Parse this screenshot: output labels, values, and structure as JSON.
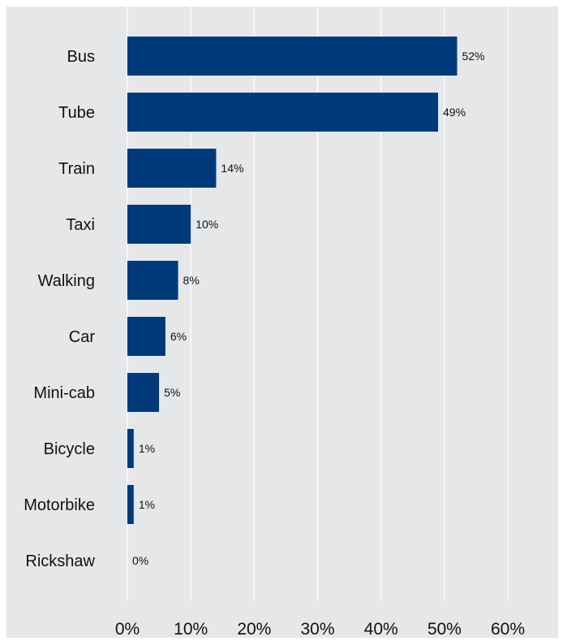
{
  "chart_data": {
    "type": "bar",
    "orientation": "horizontal",
    "categories": [
      "Bus",
      "Tube",
      "Train",
      "Taxi",
      "Walking",
      "Car",
      "Mini-cab",
      "Bicycle",
      "Motorbike",
      "Rickshaw"
    ],
    "values": [
      52,
      49,
      14,
      10,
      8,
      6,
      5,
      1,
      1,
      0
    ],
    "data_labels": [
      "52%",
      "49%",
      "14%",
      "10%",
      "8%",
      "6%",
      "5%",
      "1%",
      "1%",
      "0%"
    ],
    "x_ticks": [
      0,
      10,
      20,
      30,
      40,
      50,
      60
    ],
    "x_tick_labels": [
      "0%",
      "10%",
      "20%",
      "30%",
      "40%",
      "50%",
      "60%"
    ],
    "xlim": [
      0,
      60
    ],
    "grid": "vertical",
    "colors": {
      "bar": "#003a7a",
      "plot_bg": "#e6e7e9",
      "grid": "#ffffff"
    }
  }
}
